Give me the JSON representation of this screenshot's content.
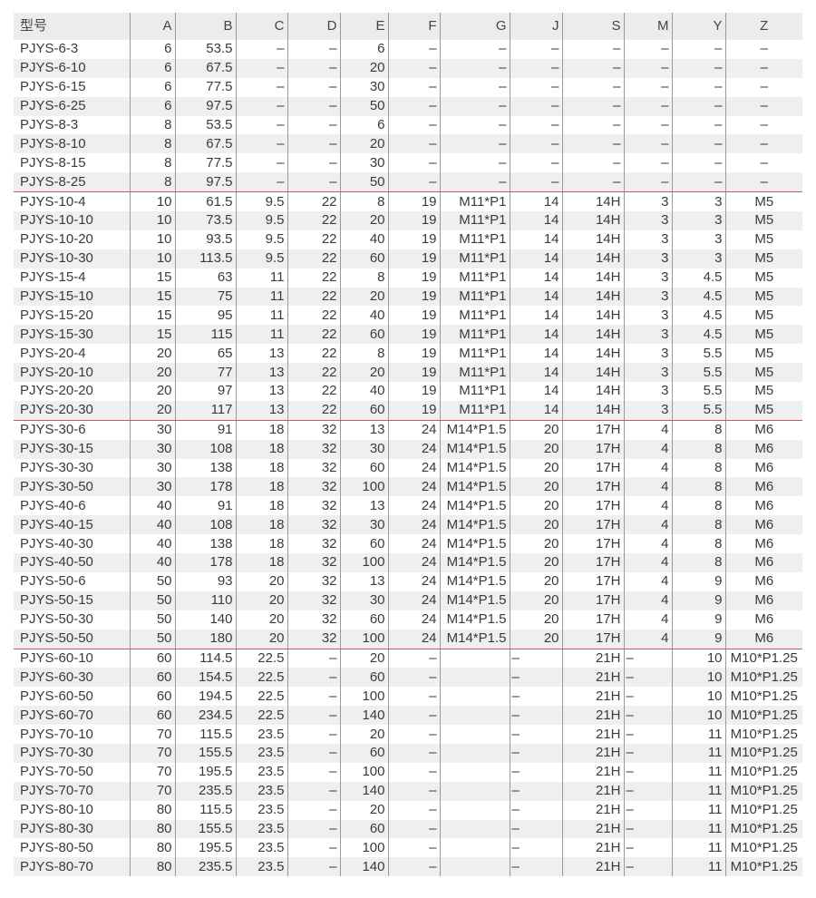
{
  "headers": [
    "型号",
    "A",
    "B",
    "C",
    "D",
    "E",
    "F",
    "G",
    "J",
    "S",
    "M",
    "Y",
    "Z"
  ],
  "rows": [
    [
      "PJYS-6-3",
      "6",
      "53.5",
      "–",
      "–",
      "6",
      "–",
      "–",
      "–",
      "–",
      "–",
      "–",
      "–"
    ],
    [
      "PJYS-6-10",
      "6",
      "67.5",
      "–",
      "–",
      "20",
      "–",
      "–",
      "–",
      "–",
      "–",
      "–",
      "–"
    ],
    [
      "PJYS-6-15",
      "6",
      "77.5",
      "–",
      "–",
      "30",
      "–",
      "–",
      "–",
      "–",
      "–",
      "–",
      "–"
    ],
    [
      "PJYS-6-25",
      "6",
      "97.5",
      "–",
      "–",
      "50",
      "–",
      "–",
      "–",
      "–",
      "–",
      "–",
      "–"
    ],
    [
      "PJYS-8-3",
      "8",
      "53.5",
      "–",
      "–",
      "6",
      "–",
      "–",
      "–",
      "–",
      "–",
      "–",
      "–"
    ],
    [
      "PJYS-8-10",
      "8",
      "67.5",
      "–",
      "–",
      "20",
      "–",
      "–",
      "–",
      "–",
      "–",
      "–",
      "–"
    ],
    [
      "PJYS-8-15",
      "8",
      "77.5",
      "–",
      "–",
      "30",
      "–",
      "–",
      "–",
      "–",
      "–",
      "–",
      "–"
    ],
    [
      "PJYS-8-25",
      "8",
      "97.5",
      "–",
      "–",
      "50",
      "–",
      "–",
      "–",
      "–",
      "–",
      "–",
      "–"
    ],
    [
      "PJYS-10-4",
      "10",
      "61.5",
      "9.5",
      "22",
      "8",
      "19",
      "M11*P1",
      "14",
      "14H",
      "3",
      "3",
      "M5"
    ],
    [
      "PJYS-10-10",
      "10",
      "73.5",
      "9.5",
      "22",
      "20",
      "19",
      "M11*P1",
      "14",
      "14H",
      "3",
      "3",
      "M5"
    ],
    [
      "PJYS-10-20",
      "10",
      "93.5",
      "9.5",
      "22",
      "40",
      "19",
      "M11*P1",
      "14",
      "14H",
      "3",
      "3",
      "M5"
    ],
    [
      "PJYS-10-30",
      "10",
      "113.5",
      "9.5",
      "22",
      "60",
      "19",
      "M11*P1",
      "14",
      "14H",
      "3",
      "3",
      "M5"
    ],
    [
      "PJYS-15-4",
      "15",
      "63",
      "11",
      "22",
      "8",
      "19",
      "M11*P1",
      "14",
      "14H",
      "3",
      "4.5",
      "M5"
    ],
    [
      "PJYS-15-10",
      "15",
      "75",
      "11",
      "22",
      "20",
      "19",
      "M11*P1",
      "14",
      "14H",
      "3",
      "4.5",
      "M5"
    ],
    [
      "PJYS-15-20",
      "15",
      "95",
      "11",
      "22",
      "40",
      "19",
      "M11*P1",
      "14",
      "14H",
      "3",
      "4.5",
      "M5"
    ],
    [
      "PJYS-15-30",
      "15",
      "115",
      "11",
      "22",
      "60",
      "19",
      "M11*P1",
      "14",
      "14H",
      "3",
      "4.5",
      "M5"
    ],
    [
      "PJYS-20-4",
      "20",
      "65",
      "13",
      "22",
      "8",
      "19",
      "M11*P1",
      "14",
      "14H",
      "3",
      "5.5",
      "M5"
    ],
    [
      "PJYS-20-10",
      "20",
      "77",
      "13",
      "22",
      "20",
      "19",
      "M11*P1",
      "14",
      "14H",
      "3",
      "5.5",
      "M5"
    ],
    [
      "PJYS-20-20",
      "20",
      "97",
      "13",
      "22",
      "40",
      "19",
      "M11*P1",
      "14",
      "14H",
      "3",
      "5.5",
      "M5"
    ],
    [
      "PJYS-20-30",
      "20",
      "117",
      "13",
      "22",
      "60",
      "19",
      "M11*P1",
      "14",
      "14H",
      "3",
      "5.5",
      "M5"
    ],
    [
      "PJYS-30-6",
      "30",
      "91",
      "18",
      "32",
      "13",
      "24",
      "M14*P1.5",
      "20",
      "17H",
      "4",
      "8",
      "M6"
    ],
    [
      "PJYS-30-15",
      "30",
      "108",
      "18",
      "32",
      "30",
      "24",
      "M14*P1.5",
      "20",
      "17H",
      "4",
      "8",
      "M6"
    ],
    [
      "PJYS-30-30",
      "30",
      "138",
      "18",
      "32",
      "60",
      "24",
      "M14*P1.5",
      "20",
      "17H",
      "4",
      "8",
      "M6"
    ],
    [
      "PJYS-30-50",
      "30",
      "178",
      "18",
      "32",
      "100",
      "24",
      "M14*P1.5",
      "20",
      "17H",
      "4",
      "8",
      "M6"
    ],
    [
      "PJYS-40-6",
      "40",
      "91",
      "18",
      "32",
      "13",
      "24",
      "M14*P1.5",
      "20",
      "17H",
      "4",
      "8",
      "M6"
    ],
    [
      "PJYS-40-15",
      "40",
      "108",
      "18",
      "32",
      "30",
      "24",
      "M14*P1.5",
      "20",
      "17H",
      "4",
      "8",
      "M6"
    ],
    [
      "PJYS-40-30",
      "40",
      "138",
      "18",
      "32",
      "60",
      "24",
      "M14*P1.5",
      "20",
      "17H",
      "4",
      "8",
      "M6"
    ],
    [
      "PJYS-40-50",
      "40",
      "178",
      "18",
      "32",
      "100",
      "24",
      "M14*P1.5",
      "20",
      "17H",
      "4",
      "8",
      "M6"
    ],
    [
      "PJYS-50-6",
      "50",
      "93",
      "20",
      "32",
      "13",
      "24",
      "M14*P1.5",
      "20",
      "17H",
      "4",
      "9",
      "M6"
    ],
    [
      "PJYS-50-15",
      "50",
      "110",
      "20",
      "32",
      "30",
      "24",
      "M14*P1.5",
      "20",
      "17H",
      "4",
      "9",
      "M6"
    ],
    [
      "PJYS-50-30",
      "50",
      "140",
      "20",
      "32",
      "60",
      "24",
      "M14*P1.5",
      "20",
      "17H",
      "4",
      "9",
      "M6"
    ],
    [
      "PJYS-50-50",
      "50",
      "180",
      "20",
      "32",
      "100",
      "24",
      "M14*P1.5",
      "20",
      "17H",
      "4",
      "9",
      "M6"
    ],
    [
      "PJYS-60-10",
      "60",
      "114.5",
      "22.5",
      "–",
      "20",
      "–",
      "",
      "–",
      "21H",
      "–",
      "10",
      "M10*P1.25"
    ],
    [
      "PJYS-60-30",
      "60",
      "154.5",
      "22.5",
      "–",
      "60",
      "–",
      "",
      "–",
      "21H",
      "–",
      "10",
      "M10*P1.25"
    ],
    [
      "PJYS-60-50",
      "60",
      "194.5",
      "22.5",
      "–",
      "100",
      "–",
      "",
      "–",
      "21H",
      "–",
      "10",
      "M10*P1.25"
    ],
    [
      "PJYS-60-70",
      "60",
      "234.5",
      "22.5",
      "–",
      "140",
      "–",
      "",
      "–",
      "21H",
      "–",
      "10",
      "M10*P1.25"
    ],
    [
      "PJYS-70-10",
      "70",
      "115.5",
      "23.5",
      "–",
      "20",
      "–",
      "",
      "–",
      "21H",
      "–",
      "11",
      "M10*P1.25"
    ],
    [
      "PJYS-70-30",
      "70",
      "155.5",
      "23.5",
      "–",
      "60",
      "–",
      "",
      "–",
      "21H",
      "–",
      "11",
      "M10*P1.25"
    ],
    [
      "PJYS-70-50",
      "70",
      "195.5",
      "23.5",
      "–",
      "100",
      "–",
      "",
      "–",
      "21H",
      "–",
      "11",
      "M10*P1.25"
    ],
    [
      "PJYS-70-70",
      "70",
      "235.5",
      "23.5",
      "–",
      "140",
      "–",
      "",
      "–",
      "21H",
      "–",
      "11",
      "M10*P1.25"
    ],
    [
      "PJYS-80-10",
      "80",
      "115.5",
      "23.5",
      "–",
      "20",
      "–",
      "",
      "–",
      "21H",
      "–",
      "11",
      "M10*P1.25"
    ],
    [
      "PJYS-80-30",
      "80",
      "155.5",
      "23.5",
      "–",
      "60",
      "–",
      "",
      "–",
      "21H",
      "–",
      "11",
      "M10*P1.25"
    ],
    [
      "PJYS-80-50",
      "80",
      "195.5",
      "23.5",
      "–",
      "100",
      "–",
      "",
      "–",
      "21H",
      "–",
      "11",
      "M10*P1.25"
    ],
    [
      "PJYS-80-70",
      "80",
      "235.5",
      "23.5",
      "–",
      "140",
      "–",
      "",
      "–",
      "21H",
      "–",
      "11",
      "M10*P1.25"
    ]
  ],
  "colors": {
    "separator": "#c9575b",
    "header_bg": "#ececec",
    "alt_row_bg": "#efefef"
  }
}
